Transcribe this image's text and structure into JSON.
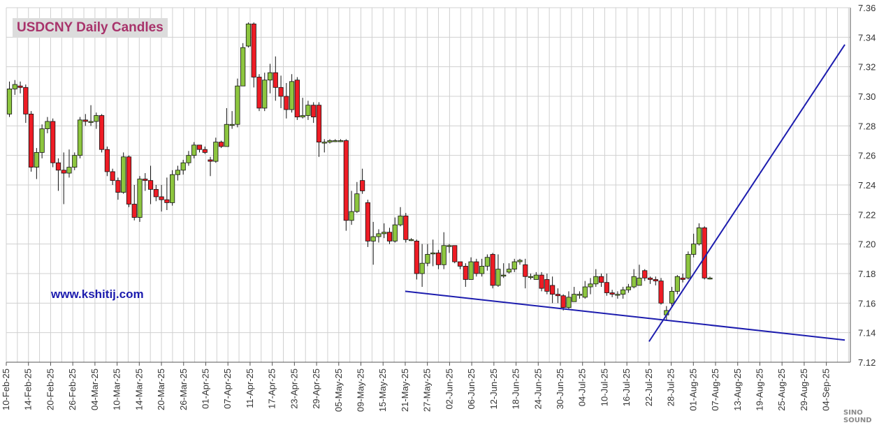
{
  "chart_data": {
    "type": "candlestick",
    "title": "USDCNY Daily Candles",
    "annotation": "www.kshitij.com",
    "ylim": [
      7.12,
      7.36
    ],
    "y_ticks": [
      "7.12",
      "7.14",
      "7.16",
      "7.18",
      "7.20",
      "7.22",
      "7.24",
      "7.26",
      "7.28",
      "7.30",
      "7.32",
      "7.34",
      "7.36"
    ],
    "x_tick_labels": [
      "10-Feb-25",
      "14-Feb-25",
      "20-Feb-25",
      "26-Feb-25",
      "04-Mar-25",
      "10-Mar-25",
      "14-Mar-25",
      "20-Mar-25",
      "26-Mar-25",
      "01-Apr-25",
      "07-Apr-25",
      "11-Apr-25",
      "17-Apr-25",
      "23-Apr-25",
      "29-Apr-25",
      "05-May-25",
      "09-May-25",
      "15-May-25",
      "21-May-25",
      "27-May-25",
      "02-Jun-25",
      "06-Jun-25",
      "12-Jun-25",
      "18-Jun-25",
      "24-Jun-25",
      "30-Jun-25",
      "04-Jul-25",
      "10-Jul-25",
      "16-Jul-25",
      "22-Jul-25",
      "28-Jul-25",
      "01-Aug-25",
      "07-Aug-25",
      "13-Aug-25",
      "19-Aug-25",
      "25-Aug-25",
      "29-Aug-25",
      "04-Sep-25"
    ],
    "candles": [
      [
        7.288,
        7.305,
        7.31,
        7.286
      ],
      [
        7.305,
        7.308,
        7.311,
        7.301
      ],
      [
        7.307,
        7.306,
        7.31,
        7.302
      ],
      [
        7.306,
        7.288,
        7.308,
        7.282
      ],
      [
        7.288,
        7.252,
        7.29,
        7.249
      ],
      [
        7.252,
        7.262,
        7.265,
        7.244
      ],
      [
        7.262,
        7.278,
        7.281,
        7.258
      ],
      [
        7.278,
        7.283,
        7.286,
        7.275
      ],
      [
        7.283,
        7.255,
        7.285,
        7.252
      ],
      [
        7.255,
        7.25,
        7.258,
        7.236
      ],
      [
        7.25,
        7.248,
        7.262,
        7.227
      ],
      [
        7.248,
        7.252,
        7.264,
        7.245
      ],
      [
        7.252,
        7.26,
        7.262,
        7.25
      ],
      [
        7.26,
        7.284,
        7.286,
        7.258
      ],
      [
        7.284,
        7.283,
        7.288,
        7.28
      ],
      [
        7.283,
        7.283,
        7.294,
        7.28
      ],
      [
        7.283,
        7.287,
        7.289,
        7.278
      ],
      [
        7.287,
        7.264,
        7.288,
        7.262
      ],
      [
        7.264,
        7.249,
        7.266,
        7.246
      ],
      [
        7.249,
        7.243,
        7.251,
        7.24
      ],
      [
        7.243,
        7.235,
        7.245,
        7.23
      ],
      [
        7.235,
        7.259,
        7.262,
        7.234
      ],
      [
        7.259,
        7.227,
        7.26,
        7.225
      ],
      [
        7.227,
        7.218,
        7.24,
        7.216
      ],
      [
        7.218,
        7.244,
        7.246,
        7.215
      ],
      [
        7.244,
        7.243,
        7.248,
        7.236
      ],
      [
        7.243,
        7.237,
        7.253,
        7.227
      ],
      [
        7.237,
        7.232,
        7.24,
        7.229
      ],
      [
        7.232,
        7.23,
        7.24,
        7.222
      ],
      [
        7.23,
        7.228,
        7.245,
        7.223
      ],
      [
        7.228,
        7.247,
        7.25,
        7.226
      ],
      [
        7.247,
        7.25,
        7.253,
        7.243
      ],
      [
        7.25,
        7.255,
        7.257,
        7.247
      ],
      [
        7.255,
        7.26,
        7.263,
        7.253
      ],
      [
        7.26,
        7.267,
        7.269,
        7.258
      ],
      [
        7.267,
        7.264,
        7.267,
        7.262
      ],
      [
        7.264,
        7.262,
        7.266,
        7.261
      ],
      [
        7.257,
        7.256,
        7.259,
        7.246
      ],
      [
        7.256,
        7.269,
        7.272,
        7.255
      ],
      [
        7.269,
        7.266,
        7.27,
        7.265
      ],
      [
        7.266,
        7.281,
        7.292,
        7.266
      ],
      [
        7.281,
        7.281,
        7.29,
        7.278
      ],
      [
        7.281,
        7.307,
        7.312,
        7.279
      ],
      [
        7.307,
        7.333,
        7.336,
        7.326
      ],
      [
        7.334,
        7.349,
        7.35,
        7.333
      ],
      [
        7.349,
        7.313,
        7.35,
        7.306
      ],
      [
        7.313,
        7.292,
        7.315,
        7.29
      ],
      [
        7.292,
        7.311,
        7.316,
        7.29
      ],
      [
        7.311,
        7.316,
        7.322,
        7.302
      ],
      [
        7.316,
        7.306,
        7.327,
        7.297
      ],
      [
        7.306,
        7.3,
        7.314,
        7.292
      ],
      [
        7.3,
        7.291,
        7.309,
        7.285
      ],
      [
        7.291,
        7.31,
        7.315,
        7.289
      ],
      [
        7.311,
        7.286,
        7.313,
        7.284
      ],
      [
        7.286,
        7.287,
        7.299,
        7.285
      ],
      [
        7.287,
        7.294,
        7.297,
        7.284
      ],
      [
        7.294,
        7.286,
        7.296,
        7.282
      ],
      [
        7.294,
        7.269,
        7.296,
        7.259
      ],
      [
        7.269,
        7.269,
        7.271,
        7.262
      ],
      [
        7.269,
        7.27,
        7.271,
        7.268
      ],
      [
        7.27,
        7.27,
        7.271,
        7.269
      ],
      [
        7.27,
        7.27,
        7.271,
        7.269
      ],
      [
        7.27,
        7.216,
        7.271,
        7.209
      ],
      [
        7.216,
        7.222,
        7.236,
        7.213
      ],
      [
        7.222,
        7.234,
        7.242,
        7.221
      ],
      [
        7.243,
        7.236,
        7.251,
        7.234
      ],
      [
        7.228,
        7.202,
        7.23,
        7.198
      ],
      [
        7.202,
        7.205,
        7.215,
        7.186
      ],
      [
        7.205,
        7.207,
        7.21,
        7.201
      ],
      [
        7.207,
        7.208,
        7.214,
        7.204
      ],
      [
        7.208,
        7.202,
        7.211,
        7.2
      ],
      [
        7.202,
        7.213,
        7.218,
        7.201
      ],
      [
        7.213,
        7.219,
        7.225,
        7.212
      ],
      [
        7.219,
        7.203,
        7.221,
        7.201
      ],
      [
        7.203,
        7.203,
        7.204,
        7.202
      ],
      [
        7.202,
        7.18,
        7.203,
        7.176
      ],
      [
        7.18,
        7.187,
        7.2,
        7.171
      ],
      [
        7.187,
        7.193,
        7.2,
        7.185
      ],
      [
        7.194,
        7.194,
        7.203,
        7.185
      ],
      [
        7.194,
        7.186,
        7.196,
        7.183
      ],
      [
        7.186,
        7.199,
        7.208,
        7.183
      ],
      [
        7.199,
        7.199,
        7.2,
        7.194
      ],
      [
        7.199,
        7.188,
        7.199,
        7.187
      ],
      [
        7.188,
        7.185,
        7.188,
        7.183
      ],
      [
        7.185,
        7.176,
        7.187,
        7.171
      ],
      [
        7.176,
        7.188,
        7.191,
        7.176
      ],
      [
        7.188,
        7.18,
        7.19,
        7.178
      ],
      [
        7.18,
        7.185,
        7.19,
        7.178
      ],
      [
        7.185,
        7.191,
        7.193,
        7.182
      ],
      [
        7.193,
        7.172,
        7.194,
        7.17
      ],
      [
        7.172,
        7.183,
        7.193,
        7.171
      ],
      [
        7.179,
        7.179,
        7.187,
        7.177
      ],
      [
        7.181,
        7.183,
        7.187,
        7.18
      ],
      [
        7.183,
        7.188,
        7.19,
        7.181
      ],
      [
        7.188,
        7.189,
        7.19,
        7.186
      ],
      [
        7.186,
        7.178,
        7.19,
        7.17
      ],
      [
        7.178,
        7.178,
        7.18,
        7.176
      ],
      [
        7.176,
        7.179,
        7.181,
        7.176
      ],
      [
        7.179,
        7.17,
        7.181,
        7.168
      ],
      [
        7.176,
        7.168,
        7.18,
        7.166
      ],
      [
        7.172,
        7.166,
        7.178,
        7.16
      ],
      [
        7.166,
        7.165,
        7.17,
        7.16
      ],
      [
        7.165,
        7.157,
        7.166,
        7.155
      ],
      [
        7.157,
        7.164,
        7.168,
        7.156
      ],
      [
        7.161,
        7.166,
        7.171,
        7.161
      ],
      [
        7.166,
        7.166,
        7.168,
        7.163
      ],
      [
        7.164,
        7.171,
        7.175,
        7.163
      ],
      [
        7.171,
        7.173,
        7.177,
        7.166
      ],
      [
        7.173,
        7.178,
        7.183,
        7.171
      ],
      [
        7.178,
        7.174,
        7.18,
        7.171
      ],
      [
        7.174,
        7.167,
        7.18,
        7.165
      ],
      [
        7.167,
        7.166,
        7.169,
        7.164
      ],
      [
        7.166,
        7.166,
        7.168,
        7.163
      ],
      [
        7.166,
        7.169,
        7.171,
        7.163
      ],
      [
        7.169,
        7.171,
        7.173,
        7.167
      ],
      [
        7.171,
        7.178,
        7.183,
        7.17
      ],
      [
        7.172,
        7.177,
        7.186,
        7.172
      ],
      [
        7.182,
        7.177,
        7.183,
        7.175
      ],
      [
        7.177,
        7.176,
        7.178,
        7.173
      ],
      [
        7.176,
        7.175,
        7.178,
        7.172
      ],
      [
        7.175,
        7.16,
        7.177,
        7.159
      ],
      [
        7.152,
        7.155,
        7.158,
        7.148
      ],
      [
        7.16,
        7.168,
        7.171,
        7.157
      ],
      [
        7.168,
        7.178,
        7.179,
        7.166
      ],
      [
        7.177,
        7.176,
        7.18,
        7.174
      ],
      [
        7.177,
        7.193,
        7.195,
        7.176
      ],
      [
        7.193,
        7.2,
        7.207,
        7.191
      ],
      [
        7.2,
        7.211,
        7.214,
        7.199
      ],
      [
        7.211,
        7.177,
        7.212,
        7.176
      ],
      [
        7.177,
        7.177,
        7.178,
        7.176
      ]
    ],
    "trendlines": [
      {
        "from": [
          "21-May-25",
          7.168
        ],
        "to": [
          "09-Sep-25",
          7.135
        ]
      },
      {
        "from": [
          "22-Jul-25",
          7.134
        ],
        "to": [
          "09-Sep-25",
          7.335
        ]
      }
    ],
    "colors": {
      "up": "#8dc63f",
      "down": "#ee1c25",
      "trendline": "#1c1cae",
      "grid": "#d0d0d0",
      "title_text": "#a8336b",
      "title_bg": "#dcdcdc",
      "url_text": "#1c1cae"
    }
  },
  "watermark": "SINO SOUND"
}
